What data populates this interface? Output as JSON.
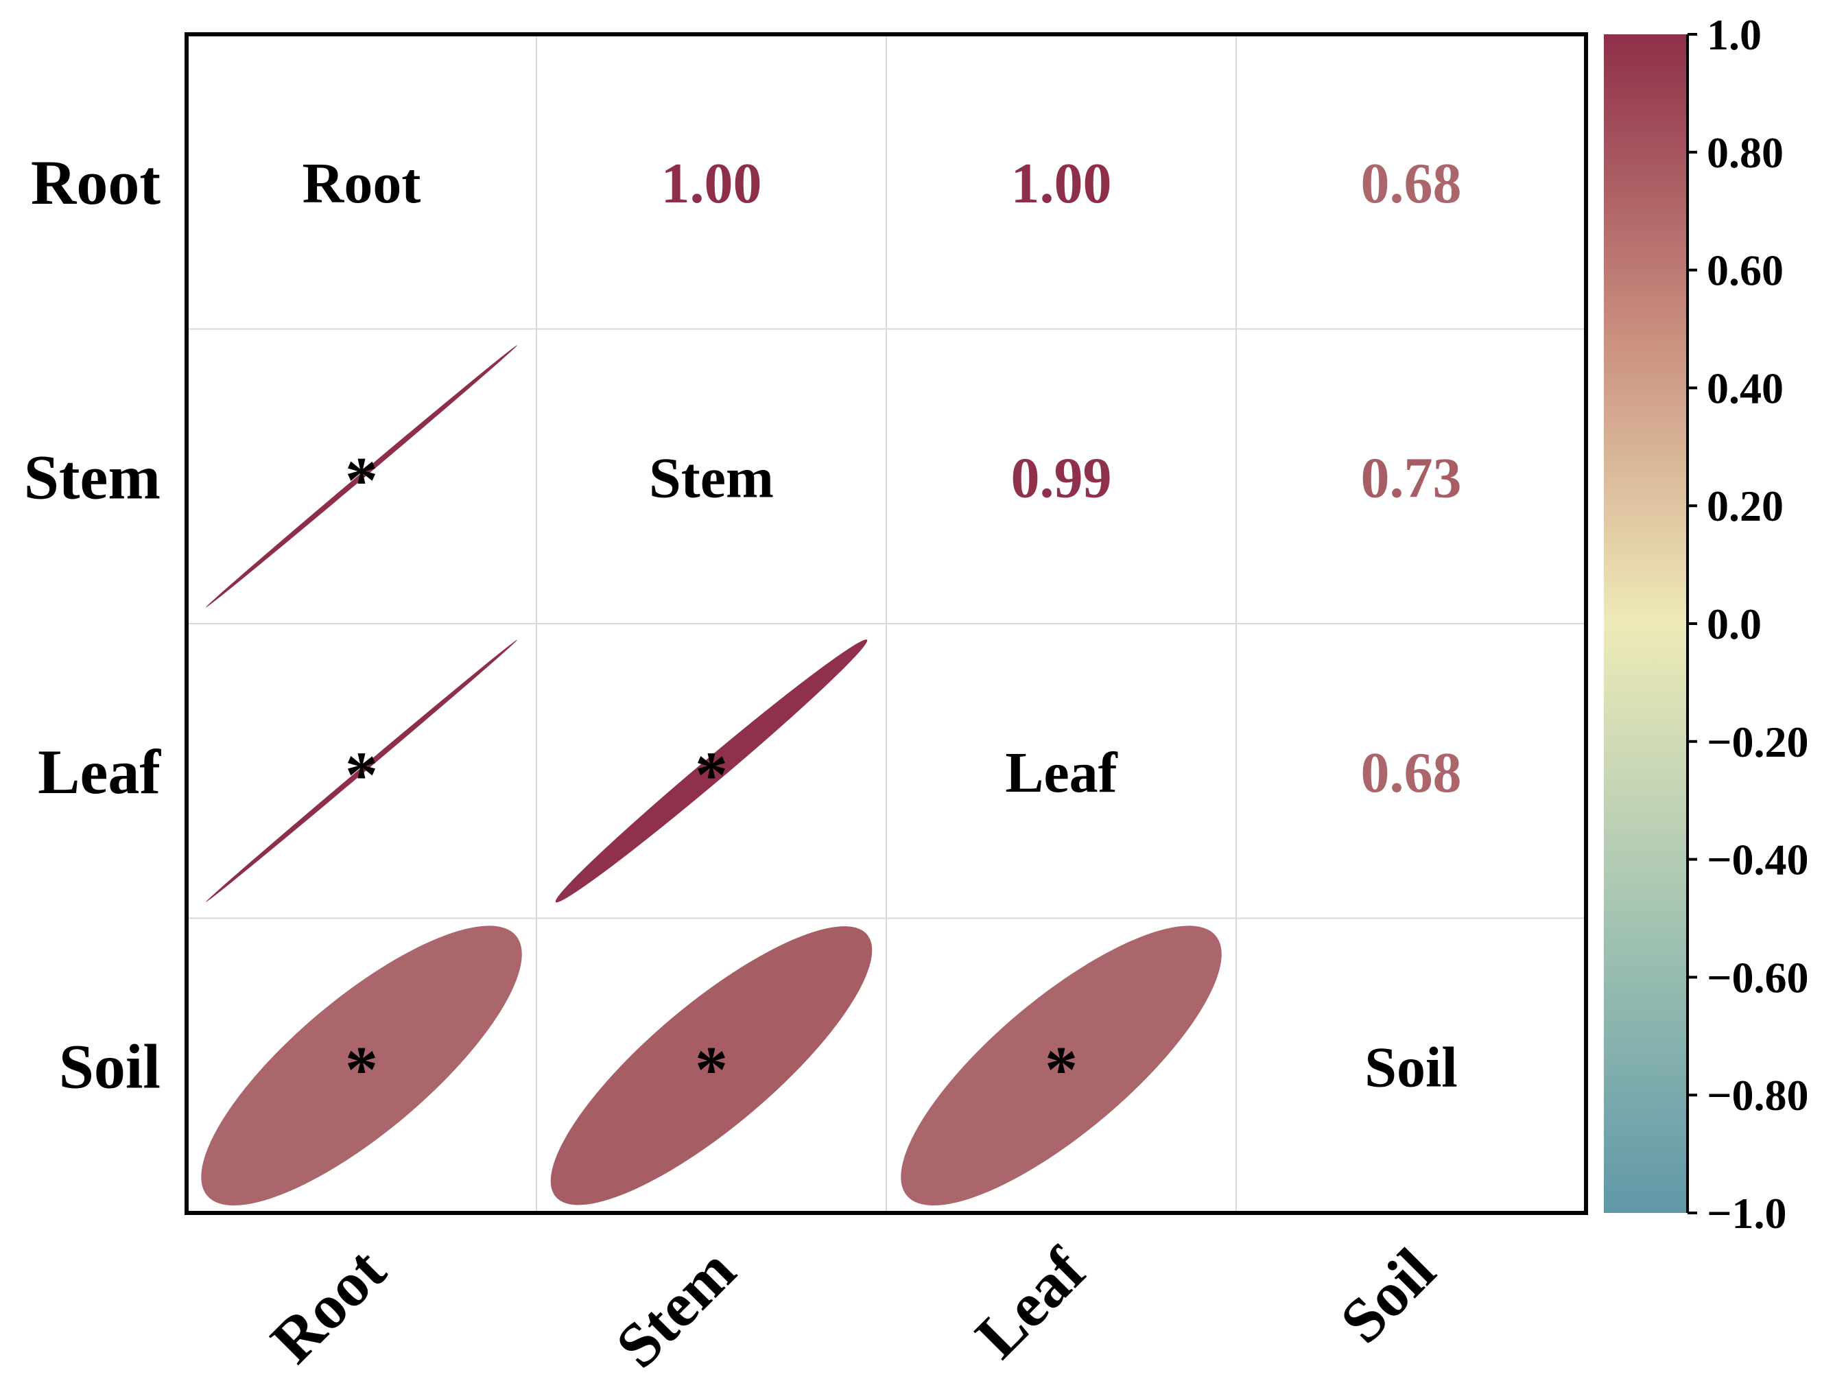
{
  "chart_data": {
    "type": "heatmap",
    "variables": [
      "Root",
      "Stem",
      "Leaf",
      "Soil"
    ],
    "correlations": [
      [
        1.0,
        1.0,
        1.0,
        0.68
      ],
      [
        1.0,
        1.0,
        0.99,
        0.73
      ],
      [
        1.0,
        0.99,
        1.0,
        0.68
      ],
      [
        0.68,
        0.73,
        0.68,
        1.0
      ]
    ],
    "upper_labels": [
      {
        "row": 0,
        "col": 1,
        "text": "1.00"
      },
      {
        "row": 0,
        "col": 2,
        "text": "1.00"
      },
      {
        "row": 0,
        "col": 3,
        "text": "0.68"
      },
      {
        "row": 1,
        "col": 2,
        "text": "0.99"
      },
      {
        "row": 1,
        "col": 3,
        "text": "0.73"
      },
      {
        "row": 2,
        "col": 3,
        "text": "0.68"
      }
    ],
    "significance": [
      {
        "row": 1,
        "col": 0,
        "mark": "*"
      },
      {
        "row": 2,
        "col": 0,
        "mark": "*"
      },
      {
        "row": 2,
        "col": 1,
        "mark": "*"
      },
      {
        "row": 3,
        "col": 0,
        "mark": "*"
      },
      {
        "row": 3,
        "col": 1,
        "mark": "*"
      },
      {
        "row": 3,
        "col": 2,
        "mark": "*"
      }
    ],
    "lower_display": "ellipse",
    "upper_display": "number",
    "colorbar": {
      "range": [
        -1.0,
        1.0
      ],
      "ticks": [
        1.0,
        0.8,
        0.6,
        0.4,
        0.2,
        0.0,
        -0.2,
        -0.4,
        -0.6,
        -0.8,
        -1.0
      ],
      "tick_labels": [
        "1.0",
        "0.80",
        "0.60",
        "0.40",
        "0.20",
        "0.0",
        "−0.20",
        "−0.40",
        "−0.60",
        "−0.80",
        "−1.0"
      ],
      "colors": [
        "#5f98a8",
        "#eeeab8",
        "#8e2f49"
      ]
    }
  }
}
